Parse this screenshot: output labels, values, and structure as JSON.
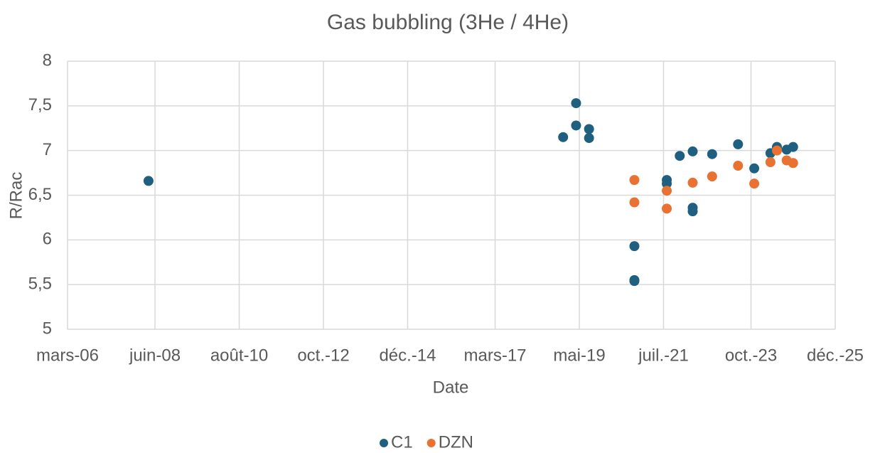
{
  "chart_data": {
    "type": "scatter",
    "title": "Gas bubbling (3He / 4He)",
    "x_label": "Date",
    "y_label": "R/Rac",
    "xlim": [
      "2006-03",
      "2025-12"
    ],
    "xticks": [
      {
        "value": "2006-03",
        "label": "mars-06"
      },
      {
        "value": "2008-06",
        "label": "juin-08"
      },
      {
        "value": "2010-08",
        "label": "août-10"
      },
      {
        "value": "2012-10",
        "label": "oct.-12"
      },
      {
        "value": "2014-12",
        "label": "déc.-14"
      },
      {
        "value": "2017-03",
        "label": "mars-17"
      },
      {
        "value": "2019-05",
        "label": "mai-19"
      },
      {
        "value": "2021-07",
        "label": "juil.-21"
      },
      {
        "value": "2023-10",
        "label": "oct.-23"
      },
      {
        "value": "2025-12",
        "label": "déc.-25"
      }
    ],
    "ylim": [
      5,
      8
    ],
    "yticks": [
      5,
      {
        "value": 5.5,
        "label": "5,5"
      },
      6,
      {
        "value": 6.5,
        "label": "6,5"
      },
      7,
      {
        "value": 7.5,
        "label": "7,5"
      },
      8
    ],
    "grid": true,
    "legend": "bottom",
    "series": [
      {
        "name": "C1",
        "color": "#1f5f7f",
        "x": [
          "2008-04",
          "2018-12",
          "2019-04",
          "2019-04",
          "2019-08",
          "2019-08",
          "2020-10",
          "2020-10",
          "2020-10",
          "2021-08",
          "2021-08",
          "2021-12",
          "2022-04",
          "2022-04",
          "2022-04",
          "2022-10",
          "2023-06",
          "2023-11",
          "2024-04",
          "2024-06",
          "2024-06",
          "2024-09",
          "2024-11"
        ],
        "values": [
          6.66,
          7.15,
          7.53,
          7.28,
          7.24,
          7.14,
          5.93,
          5.55,
          5.54,
          6.67,
          6.63,
          6.94,
          6.99,
          6.36,
          6.32,
          6.96,
          7.07,
          6.8,
          6.97,
          7.04,
          7.01,
          7.01,
          7.04
        ]
      },
      {
        "name": "DZN",
        "color": "#e97132",
        "x": [
          "2020-10",
          "2020-10",
          "2021-08",
          "2021-08",
          "2022-04",
          "2022-10",
          "2023-06",
          "2023-11",
          "2024-04",
          "2024-06",
          "2024-09",
          "2024-11"
        ],
        "values": [
          6.67,
          6.42,
          6.55,
          6.35,
          6.64,
          6.71,
          6.83,
          6.63,
          6.87,
          7.0,
          6.89,
          6.86
        ]
      }
    ]
  }
}
